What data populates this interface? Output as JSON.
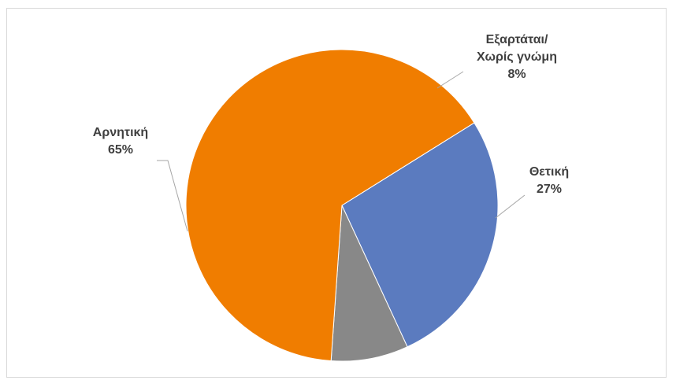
{
  "chart_data": {
    "type": "pie",
    "title": "",
    "legend": "none",
    "categories": [
      "Θετική",
      "Εξαρτάται/ Χωρίς γνώμη",
      "Αρνητική"
    ],
    "values": [
      27,
      8,
      65
    ],
    "unit": "%",
    "colors": [
      "#5b7bbf",
      "#888888",
      "#f07d00"
    ],
    "slices": [
      {
        "label_lines": [
          "Θετική"
        ],
        "percent_text": "27%",
        "value": 27,
        "color": "#5b7bbf"
      },
      {
        "label_lines": [
          "Εξαρτάται/",
          "Χωρίς γνώμη"
        ],
        "percent_text": "8%",
        "value": 8,
        "color": "#888888"
      },
      {
        "label_lines": [
          "Αρνητική"
        ],
        "percent_text": "65%",
        "value": 65,
        "color": "#f07d00"
      }
    ]
  }
}
